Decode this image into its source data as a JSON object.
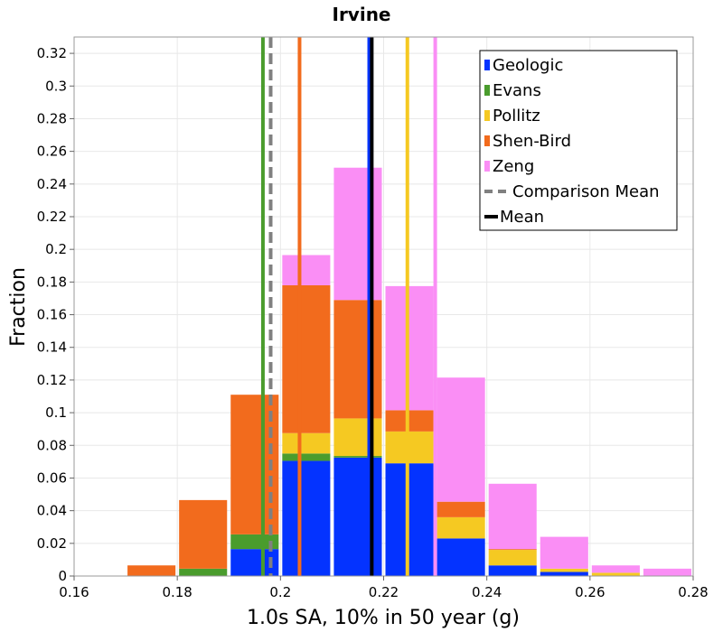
{
  "chart_data": {
    "type": "bar",
    "stacked": true,
    "title": "Irvine",
    "xlabel": "1.0s SA, 10% in 50 year (g)",
    "ylabel": "Fraction",
    "xlim": [
      0.16,
      0.28
    ],
    "ylim": [
      0,
      0.33
    ],
    "xticks": [
      "0.16",
      "0.18",
      "0.2",
      "0.22",
      "0.24",
      "0.26",
      "0.28"
    ],
    "yticks": [
      "0",
      "0.02",
      "0.04",
      "0.06",
      "0.08",
      "0.1",
      "0.12",
      "0.14",
      "0.16",
      "0.18",
      "0.2",
      "0.22",
      "0.24",
      "0.26",
      "0.28",
      "0.3",
      "0.32"
    ],
    "grid": true,
    "legend_position": "top-right",
    "bins": [
      [
        0.17,
        0.18
      ],
      [
        0.18,
        0.19
      ],
      [
        0.19,
        0.2
      ],
      [
        0.2,
        0.21
      ],
      [
        0.21,
        0.22
      ],
      [
        0.22,
        0.23
      ],
      [
        0.23,
        0.24
      ],
      [
        0.24,
        0.25
      ],
      [
        0.25,
        0.26
      ],
      [
        0.26,
        0.27
      ],
      [
        0.27,
        0.28
      ]
    ],
    "series": [
      {
        "name": "Geologic",
        "color": "#0433ff",
        "values": [
          0,
          0,
          0.0165,
          0.0705,
          0.0725,
          0.069,
          0.023,
          0.0065,
          0.0025,
          0,
          0
        ]
      },
      {
        "name": "Evans",
        "color": "#4a9c2d",
        "values": [
          0,
          0.0045,
          0.009,
          0.0045,
          0.001,
          0,
          0,
          0,
          0,
          0,
          0
        ]
      },
      {
        "name": "Pollitz",
        "color": "#f5c922",
        "values": [
          0,
          0,
          0,
          0.0125,
          0.023,
          0.0195,
          0.013,
          0.0095,
          0.002,
          0.002,
          0
        ]
      },
      {
        "name": "Shen-Bird",
        "color": "#f26b1d",
        "values": [
          0.0065,
          0.042,
          0.0855,
          0.0905,
          0.0725,
          0.013,
          0.0095,
          0.0005,
          0,
          0,
          0
        ]
      },
      {
        "name": "Zeng",
        "color": "#fa8ef5",
        "values": [
          0,
          0,
          0,
          0.0185,
          0.081,
          0.076,
          0.076,
          0.04,
          0.0195,
          0.0045,
          0.0045
        ]
      }
    ],
    "vertical_lines": [
      {
        "name": "Geologic",
        "x": 0.2172,
        "color": "#0433ff",
        "style": "solid"
      },
      {
        "name": "Evans",
        "x": 0.1966,
        "color": "#4a9c2d",
        "style": "solid"
      },
      {
        "name": "Pollitz",
        "x": 0.2246,
        "color": "#f5c922",
        "style": "solid"
      },
      {
        "name": "Shen-Bird",
        "x": 0.2037,
        "color": "#f26b1d",
        "style": "solid"
      },
      {
        "name": "Zeng",
        "x": 0.23,
        "color": "#fa8ef5",
        "style": "solid"
      },
      {
        "name": "Comparison Mean",
        "x": 0.1981,
        "color": "#808080",
        "style": "dashed"
      },
      {
        "name": "Mean",
        "x": 0.2177,
        "color": "#000000",
        "style": "solid"
      }
    ],
    "legend": [
      {
        "label": "Geologic",
        "color": "#0433ff",
        "kind": "box"
      },
      {
        "label": "Evans",
        "color": "#4a9c2d",
        "kind": "box"
      },
      {
        "label": "Pollitz",
        "color": "#f5c922",
        "kind": "box"
      },
      {
        "label": "Shen-Bird",
        "color": "#f26b1d",
        "kind": "box"
      },
      {
        "label": "Zeng",
        "color": "#fa8ef5",
        "kind": "box"
      },
      {
        "label": "Comparison Mean",
        "color": "#808080",
        "kind": "dashed"
      },
      {
        "label": "Mean",
        "color": "#000000",
        "kind": "line"
      }
    ]
  }
}
